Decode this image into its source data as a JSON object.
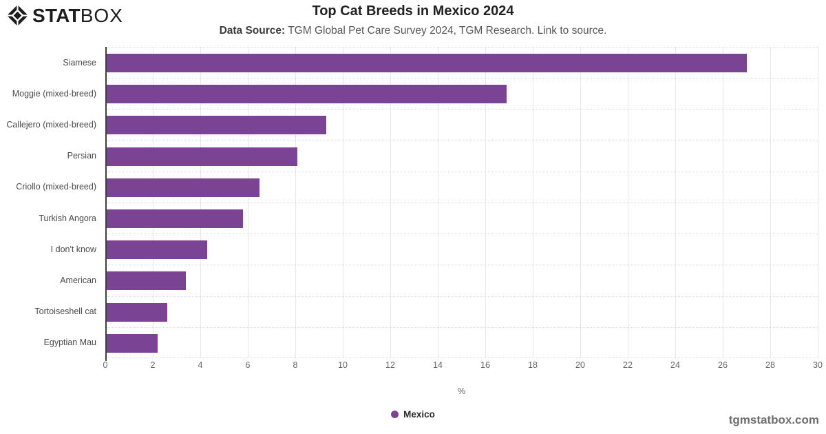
{
  "logo": {
    "stat": "STAT",
    "box": "BOX"
  },
  "header": {
    "title": "Top Cat Breeds in Mexico 2024",
    "source_label": "Data Source:",
    "source_text": "TGM Global Pet Care Survey 2024, TGM Research.",
    "source_link": "Link to source."
  },
  "chart_data": {
    "type": "bar",
    "orientation": "horizontal",
    "title": "Top Cat Breeds in Mexico 2024",
    "categories": [
      "Siamese",
      "Moggie (mixed-breed)",
      "Callejero (mixed-breed)",
      "Persian",
      "Criollo (mixed-breed)",
      "Turkish Angora",
      "I don't know",
      "American",
      "Tortoiseshell cat",
      "Egyptian Mau"
    ],
    "series": [
      {
        "name": "Mexico",
        "color": "#7B4394",
        "values": [
          27,
          16.9,
          9.3,
          8.1,
          6.5,
          5.8,
          4.3,
          3.4,
          2.6,
          2.2
        ]
      }
    ],
    "xlabel": "%",
    "ylabel": "",
    "xlim": [
      0,
      30
    ],
    "xticks": [
      0,
      2,
      4,
      6,
      8,
      10,
      12,
      14,
      16,
      18,
      20,
      22,
      24,
      26,
      28,
      30
    ],
    "grid": "vertical solid, horizontal dotted row separators",
    "legend_position": "bottom-center"
  },
  "footer": {
    "watermark": "tgmstatbox.com"
  },
  "colors": {
    "bar": "#7B4394",
    "gridline": "#e7e7e7",
    "axis_line": "#3f3f3f",
    "tick_text": "#666666",
    "category_text": "#4a4a4a",
    "logo_text": "#1d1d1f"
  }
}
